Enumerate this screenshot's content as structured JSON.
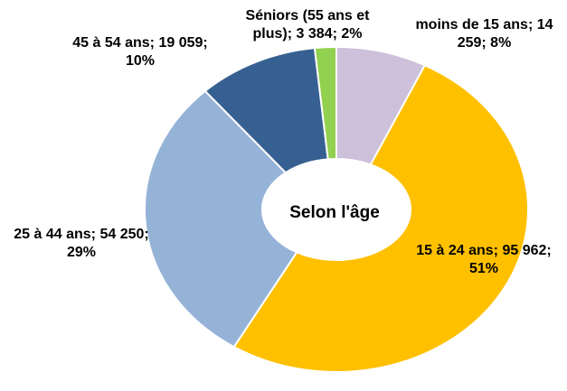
{
  "chart_data": {
    "type": "donut",
    "title": "Selon l'âge",
    "categories": [
      "moins de 15 ans",
      "15 à 24 ans",
      "25 à 44 ans",
      "45 à 54 ans",
      "Séniors (55 ans et plus)"
    ],
    "values": [
      14259,
      95962,
      54250,
      19059,
      3384
    ],
    "value_labels": [
      "14 259",
      "95 962",
      "54 250",
      "19 059",
      "3 384"
    ],
    "percent_labels": [
      "8%",
      "51%",
      "29%",
      "10%",
      "2%"
    ],
    "label_separator": "; ",
    "colors": [
      "#ccc0da",
      "#ffc000",
      "#95b3d7",
      "#376092",
      "#92d050"
    ]
  }
}
